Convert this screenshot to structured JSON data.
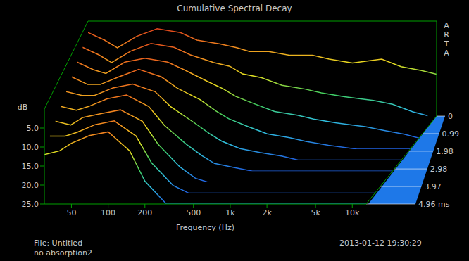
{
  "chart_data": {
    "type": "waterfall",
    "title": "Cumulative Spectral Decay",
    "x_label": "Frequency (Hz)",
    "y_label": "dB",
    "watermark": "ARTA",
    "notes": [
      "File: Untitled",
      "no absorption2"
    ],
    "date": "2013-01-12  19:30:29",
    "log": "x",
    "xlim": [
      30,
      13000
    ],
    "xticks": [
      50,
      100,
      200,
      500,
      {
        "value": 1000,
        "label": "1k"
      },
      {
        "value": 2000,
        "label": "2k"
      },
      {
        "value": 5000,
        "label": "5k"
      },
      {
        "value": 10000,
        "label": "10k"
      }
    ],
    "ylim": [
      -25,
      0
    ],
    "yticks": [
      {
        "value": -25,
        "label": "-25.0"
      },
      {
        "value": -20,
        "label": "-20.0"
      },
      {
        "value": -15,
        "label": "-15.0"
      },
      {
        "value": -10,
        "label": "-10.0"
      },
      {
        "value": -5,
        "label": "-5.0"
      }
    ],
    "time_lim": [
      0,
      4.96
    ],
    "time_ticks": [
      0,
      0.99,
      1.98,
      2.98,
      3.97,
      {
        "value": 4.96,
        "label": "4.96 ms"
      }
    ],
    "x": [
      30,
      40,
      50,
      70,
      100,
      150,
      200,
      300,
      400,
      500,
      700,
      1000,
      1500,
      2000,
      3000,
      5000,
      7000,
      10000,
      13000
    ],
    "slices": [
      {
        "time": 0,
        "values": [
          -3,
          -5,
          -7,
          -4,
          -2,
          -3,
          -5,
          -6,
          -7,
          -8,
          -8,
          -9,
          -9,
          -10,
          -11,
          -10,
          -12,
          -13,
          -14
        ]
      },
      {
        "time": 0.62,
        "values": [
          -4,
          -6,
          -8,
          -5,
          -3,
          -4,
          -6,
          -8,
          -9,
          -11,
          -12,
          -14,
          -15,
          -16,
          -17,
          -18,
          -19,
          -21,
          -22
        ]
      },
      {
        "time": 1.24,
        "values": [
          -5,
          -7,
          -8,
          -5,
          -4,
          -5,
          -7,
          -10,
          -12,
          -14,
          -16,
          -18,
          -19,
          -20,
          -21,
          -22,
          -23,
          -24,
          -25
        ]
      },
      {
        "time": 1.86,
        "values": [
          -6,
          -8,
          -8,
          -6,
          -4,
          -6,
          -9,
          -12,
          -15,
          -17,
          -19,
          -21,
          -22,
          -23,
          -24,
          -25,
          -25,
          -25,
          -25
        ]
      },
      {
        "time": 2.48,
        "values": [
          -7,
          -8,
          -8,
          -6,
          -5,
          -7,
          -11,
          -15,
          -18,
          -20,
          -22,
          -23,
          -24,
          -25,
          -25,
          -25,
          -25,
          -25,
          -25
        ]
      },
      {
        "time": 3.1,
        "values": [
          -8,
          -9,
          -8,
          -6,
          -5,
          -8,
          -13,
          -18,
          -21,
          -23,
          -24,
          -25,
          -25,
          -25,
          -25,
          -25,
          -25,
          -25,
          -25
        ]
      },
      {
        "time": 3.72,
        "values": [
          -9,
          -10,
          -8,
          -7,
          -6,
          -9,
          -15,
          -21,
          -24,
          -25,
          -25,
          -25,
          -25,
          -25,
          -25,
          -25,
          -25,
          -25,
          -25
        ]
      },
      {
        "time": 4.34,
        "values": [
          -10,
          -10,
          -9,
          -7,
          -6,
          -10,
          -17,
          -23,
          -25,
          -25,
          -25,
          -25,
          -25,
          -25,
          -25,
          -25,
          -25,
          -25,
          -25
        ]
      },
      {
        "time": 4.96,
        "values": [
          -12,
          -11,
          -9,
          -7,
          -6,
          -11,
          -19,
          -25,
          -25,
          -25,
          -25,
          -25,
          -25,
          -25,
          -25,
          -25,
          -25,
          -25,
          -25
        ]
      }
    ]
  }
}
